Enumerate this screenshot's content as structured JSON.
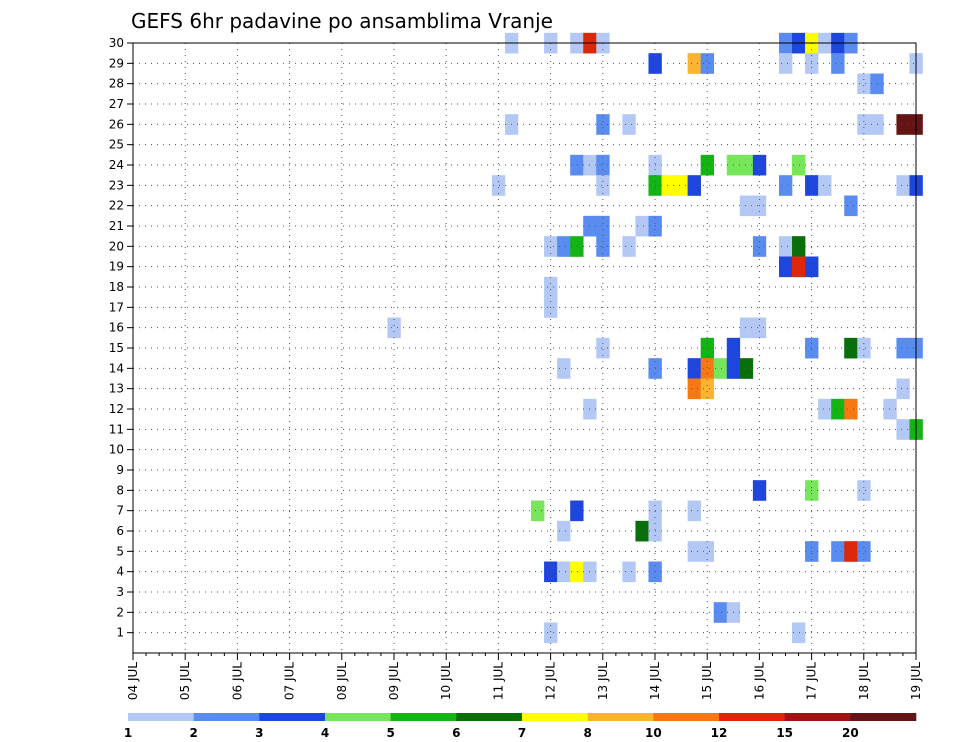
{
  "chart_data": {
    "type": "heatmap",
    "title": "GEFS 6hr padavine po ansamblima Vranje",
    "x_labels": [
      "04 JUL",
      "05 JUL",
      "06 JUL",
      "07 JUL",
      "08 JUL",
      "09 JUL",
      "10 JUL",
      "11 JUL",
      "12 JUL",
      "13 JUL",
      "14 JUL",
      "15 JUL",
      "16 JUL",
      "17 JUL",
      "18 JUL",
      "19 JUL"
    ],
    "y_labels": [
      "1",
      "2",
      "3",
      "4",
      "5",
      "6",
      "7",
      "8",
      "9",
      "10",
      "11",
      "12",
      "13",
      "14",
      "15",
      "16",
      "17",
      "18",
      "19",
      "20",
      "21",
      "22",
      "23",
      "24",
      "25",
      "26",
      "27",
      "28",
      "29",
      "30"
    ],
    "steps_per_day": 4,
    "n_steps": 60,
    "ylim": [
      0,
      30
    ],
    "grid": true,
    "colorbar": {
      "labels": [
        "1",
        "2",
        "3",
        "4",
        "5",
        "6",
        "7",
        "8",
        "10",
        "12",
        "15",
        "20"
      ],
      "colors": [
        "#b4c8f5",
        "#5a8cf0",
        "#1e46dc",
        "#78e65a",
        "#14b414",
        "#0a6e0a",
        "#ffff00",
        "#fab432",
        "#f57814",
        "#dc280a",
        "#a01414",
        "#641414"
      ]
    },
    "cells": [
      [
        30,
        29,
        0
      ],
      [
        30,
        32,
        0
      ],
      [
        30,
        34,
        0
      ],
      [
        30,
        35,
        9
      ],
      [
        30,
        36,
        0
      ],
      [
        30,
        50,
        1
      ],
      [
        30,
        51,
        2
      ],
      [
        30,
        52,
        6
      ],
      [
        30,
        53,
        0
      ],
      [
        30,
        54,
        2
      ],
      [
        30,
        55,
        1
      ],
      [
        29,
        40,
        2
      ],
      [
        29,
        43,
        7
      ],
      [
        29,
        44,
        1
      ],
      [
        29,
        50,
        0
      ],
      [
        29,
        52,
        0
      ],
      [
        29,
        54,
        1
      ],
      [
        29,
        60,
        0
      ],
      [
        28,
        56,
        0
      ],
      [
        28,
        57,
        1
      ],
      [
        26,
        29,
        0
      ],
      [
        26,
        36,
        1
      ],
      [
        26,
        38,
        0
      ],
      [
        26,
        56,
        0
      ],
      [
        26,
        57,
        0
      ],
      [
        26,
        59,
        11
      ],
      [
        26,
        60,
        11
      ],
      [
        24,
        34,
        1
      ],
      [
        24,
        35,
        0
      ],
      [
        24,
        36,
        1
      ],
      [
        24,
        40,
        0
      ],
      [
        24,
        44,
        4
      ],
      [
        24,
        46,
        3
      ],
      [
        24,
        47,
        3
      ],
      [
        24,
        48,
        2
      ],
      [
        24,
        51,
        3
      ],
      [
        23,
        28,
        0
      ],
      [
        23,
        36,
        0
      ],
      [
        23,
        40,
        4
      ],
      [
        23,
        41,
        6
      ],
      [
        23,
        42,
        6
      ],
      [
        23,
        43,
        2
      ],
      [
        23,
        50,
        1
      ],
      [
        23,
        52,
        2
      ],
      [
        23,
        53,
        0
      ],
      [
        23,
        59,
        0
      ],
      [
        23,
        60,
        2
      ],
      [
        22,
        47,
        0
      ],
      [
        22,
        48,
        0
      ],
      [
        22,
        55,
        1
      ],
      [
        21,
        35,
        1
      ],
      [
        21,
        36,
        1
      ],
      [
        21,
        39,
        0
      ],
      [
        21,
        40,
        1
      ],
      [
        20,
        32,
        0
      ],
      [
        20,
        33,
        1
      ],
      [
        20,
        34,
        4
      ],
      [
        20,
        36,
        1
      ],
      [
        20,
        38,
        0
      ],
      [
        20,
        48,
        1
      ],
      [
        20,
        50,
        0
      ],
      [
        20,
        51,
        5
      ],
      [
        19,
        50,
        2
      ],
      [
        19,
        51,
        9
      ],
      [
        19,
        52,
        2
      ],
      [
        18,
        32,
        0
      ],
      [
        17,
        32,
        0
      ],
      [
        16,
        20,
        0
      ],
      [
        16,
        47,
        0
      ],
      [
        16,
        48,
        0
      ],
      [
        15,
        36,
        0
      ],
      [
        15,
        44,
        4
      ],
      [
        15,
        46,
        2
      ],
      [
        15,
        52,
        1
      ],
      [
        15,
        55,
        5
      ],
      [
        15,
        56,
        0
      ],
      [
        15,
        59,
        1
      ],
      [
        15,
        60,
        1
      ],
      [
        14,
        33,
        0
      ],
      [
        14,
        40,
        1
      ],
      [
        14,
        43,
        2
      ],
      [
        14,
        44,
        8
      ],
      [
        14,
        45,
        3
      ],
      [
        14,
        46,
        2
      ],
      [
        14,
        47,
        5
      ],
      [
        13,
        43,
        8
      ],
      [
        13,
        44,
        7
      ],
      [
        13,
        59,
        0
      ],
      [
        12,
        35,
        0
      ],
      [
        12,
        53,
        0
      ],
      [
        12,
        54,
        4
      ],
      [
        12,
        55,
        8
      ],
      [
        12,
        58,
        0
      ],
      [
        11,
        59,
        0
      ],
      [
        11,
        60,
        4
      ],
      [
        8,
        48,
        2
      ],
      [
        8,
        52,
        3
      ],
      [
        8,
        56,
        0
      ],
      [
        7,
        31,
        3
      ],
      [
        7,
        34,
        2
      ],
      [
        7,
        40,
        0
      ],
      [
        7,
        43,
        0
      ],
      [
        6,
        33,
        0
      ],
      [
        6,
        39,
        5
      ],
      [
        6,
        40,
        0
      ],
      [
        5,
        43,
        0
      ],
      [
        5,
        44,
        0
      ],
      [
        5,
        52,
        1
      ],
      [
        5,
        54,
        1
      ],
      [
        5,
        55,
        9
      ],
      [
        5,
        56,
        1
      ],
      [
        4,
        32,
        2
      ],
      [
        4,
        33,
        0
      ],
      [
        4,
        34,
        6
      ],
      [
        4,
        35,
        0
      ],
      [
        4,
        38,
        0
      ],
      [
        4,
        40,
        1
      ],
      [
        2,
        45,
        1
      ],
      [
        2,
        46,
        0
      ],
      [
        1,
        32,
        0
      ],
      [
        1,
        51,
        0
      ]
    ]
  }
}
